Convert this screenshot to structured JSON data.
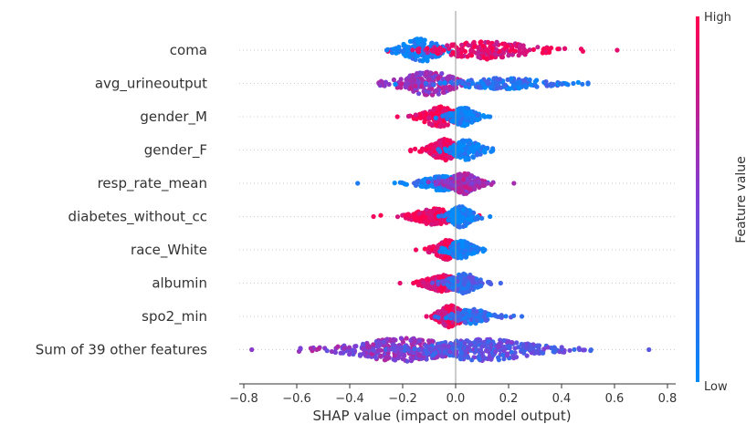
{
  "chart_data": {
    "type": "scatter",
    "subtype": "shap-beeswarm",
    "xlabel": "SHAP value (impact on model output)",
    "xlim": [
      -0.82,
      0.82
    ],
    "x_ticks": [
      -0.8,
      -0.6,
      -0.4,
      -0.2,
      0.0,
      0.2,
      0.4,
      0.6,
      0.8
    ],
    "x_tick_labels": [
      "−0.8",
      "−0.6",
      "−0.4",
      "−0.2",
      "0.0",
      "0.2",
      "0.4",
      "0.6",
      "0.8"
    ],
    "colorbar": {
      "title": "Feature value",
      "high_label": "High",
      "low_label": "Low",
      "high_color": "#ff0051",
      "low_color": "#008bfb"
    },
    "features": [
      {
        "name": "coma",
        "min": -0.26,
        "max": 0.61,
        "clusters": [
          {
            "center": -0.13,
            "spread": 0.055,
            "count": 150,
            "width": 13,
            "color": 0.05
          },
          {
            "center": 0.12,
            "spread": 0.13,
            "count": 190,
            "width": 10,
            "color": 0.9
          }
        ]
      },
      {
        "name": "avg_urineoutput",
        "min": -0.29,
        "max": 0.5,
        "clusters": [
          {
            "center": -0.1,
            "spread": 0.08,
            "count": 190,
            "width": 13,
            "color": 0.6
          },
          {
            "center": 0.18,
            "spread": 0.14,
            "count": 160,
            "width": 6,
            "color": 0.15
          }
        ]
      },
      {
        "name": "gender_M",
        "min": -0.22,
        "max": 0.13,
        "clusters": [
          {
            "center": -0.06,
            "spread": 0.045,
            "count": 170,
            "width": 12,
            "color": 0.95
          },
          {
            "center": 0.03,
            "spread": 0.035,
            "count": 150,
            "width": 10,
            "color": 0.05
          }
        ]
      },
      {
        "name": "gender_F",
        "min": -0.17,
        "max": 0.14,
        "clusters": [
          {
            "center": -0.04,
            "spread": 0.04,
            "count": 170,
            "width": 12,
            "color": 0.95
          },
          {
            "center": 0.04,
            "spread": 0.04,
            "count": 150,
            "width": 11,
            "color": 0.05
          }
        ]
      },
      {
        "name": "resp_rate_mean",
        "min": -0.37,
        "max": 0.22,
        "clusters": [
          {
            "center": -0.05,
            "spread": 0.06,
            "count": 180,
            "width": 8,
            "color": 0.1
          },
          {
            "center": 0.03,
            "spread": 0.04,
            "count": 180,
            "width": 12,
            "color": 0.65
          }
        ]
      },
      {
        "name": "diabetes_without_cc",
        "min": -0.31,
        "max": 0.13,
        "clusters": [
          {
            "center": -0.08,
            "spread": 0.06,
            "count": 190,
            "width": 9,
            "color": 0.95
          },
          {
            "center": 0.02,
            "spread": 0.03,
            "count": 160,
            "width": 12,
            "color": 0.05
          }
        ]
      },
      {
        "name": "race_White",
        "min": -0.15,
        "max": 0.11,
        "clusters": [
          {
            "center": -0.03,
            "spread": 0.035,
            "count": 160,
            "width": 11,
            "color": 0.95
          },
          {
            "center": 0.02,
            "spread": 0.035,
            "count": 160,
            "width": 10,
            "color": 0.05
          }
        ]
      },
      {
        "name": "albumin",
        "min": -0.21,
        "max": 0.17,
        "clusters": [
          {
            "center": -0.05,
            "spread": 0.05,
            "count": 190,
            "width": 9,
            "color": 0.9
          },
          {
            "center": 0.03,
            "spread": 0.04,
            "count": 170,
            "width": 11,
            "color": 0.25
          }
        ]
      },
      {
        "name": "spo2_min",
        "min": -0.11,
        "max": 0.25,
        "clusters": [
          {
            "center": -0.02,
            "spread": 0.035,
            "count": 190,
            "width": 12,
            "color": 0.9
          },
          {
            "center": 0.06,
            "spread": 0.05,
            "count": 150,
            "width": 8,
            "color": 0.2
          }
        ]
      },
      {
        "name": "Sum of 39 other features",
        "min": -0.77,
        "max": 0.73,
        "clusters": [
          {
            "center": -0.2,
            "spread": 0.14,
            "count": 330,
            "width": 13,
            "color": 0.55
          },
          {
            "center": 0.1,
            "spread": 0.16,
            "count": 330,
            "width": 12,
            "color": 0.35
          }
        ]
      }
    ]
  }
}
